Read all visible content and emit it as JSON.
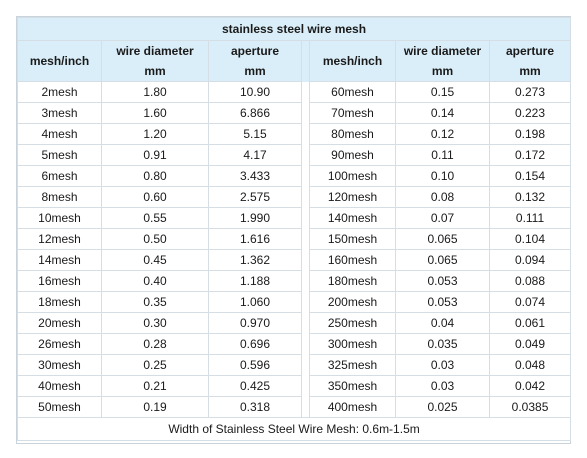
{
  "title": "stainless steel wire mesh",
  "headers": {
    "mesh": "mesh/inch",
    "wire_diameter": "wire diameter",
    "aperture": "aperture",
    "unit": "mm"
  },
  "left_rows": [
    {
      "mesh": "2mesh",
      "wire": "1.80",
      "aperture": "10.90"
    },
    {
      "mesh": "3mesh",
      "wire": "1.60",
      "aperture": "6.866"
    },
    {
      "mesh": "4mesh",
      "wire": "1.20",
      "aperture": "5.15"
    },
    {
      "mesh": "5mesh",
      "wire": "0.91",
      "aperture": "4.17"
    },
    {
      "mesh": "6mesh",
      "wire": "0.80",
      "aperture": "3.433"
    },
    {
      "mesh": "8mesh",
      "wire": "0.60",
      "aperture": "2.575"
    },
    {
      "mesh": "10mesh",
      "wire": "0.55",
      "aperture": "1.990"
    },
    {
      "mesh": "12mesh",
      "wire": "0.50",
      "aperture": "1.616"
    },
    {
      "mesh": "14mesh",
      "wire": "0.45",
      "aperture": "1.362"
    },
    {
      "mesh": "16mesh",
      "wire": "0.40",
      "aperture": "1.188"
    },
    {
      "mesh": "18mesh",
      "wire": "0.35",
      "aperture": "1.060"
    },
    {
      "mesh": "20mesh",
      "wire": "0.30",
      "aperture": "0.970"
    },
    {
      "mesh": "26mesh",
      "wire": "0.28",
      "aperture": "0.696"
    },
    {
      "mesh": "30mesh",
      "wire": "0.25",
      "aperture": "0.596"
    },
    {
      "mesh": "40mesh",
      "wire": "0.21",
      "aperture": "0.425"
    },
    {
      "mesh": "50mesh",
      "wire": "0.19",
      "aperture": "0.318"
    }
  ],
  "right_rows": [
    {
      "mesh": "60mesh",
      "wire": "0.15",
      "aperture": "0.273"
    },
    {
      "mesh": "70mesh",
      "wire": "0.14",
      "aperture": "0.223"
    },
    {
      "mesh": "80mesh",
      "wire": "0.12",
      "aperture": "0.198"
    },
    {
      "mesh": "90mesh",
      "wire": "0.11",
      "aperture": "0.172"
    },
    {
      "mesh": "100mesh",
      "wire": "0.10",
      "aperture": "0.154"
    },
    {
      "mesh": "120mesh",
      "wire": "0.08",
      "aperture": "0.132"
    },
    {
      "mesh": "140mesh",
      "wire": "0.07",
      "aperture": "0.111"
    },
    {
      "mesh": "150mesh",
      "wire": "0.065",
      "aperture": "0.104"
    },
    {
      "mesh": "160mesh",
      "wire": "0.065",
      "aperture": "0.094"
    },
    {
      "mesh": "180mesh",
      "wire": "0.053",
      "aperture": "0.088"
    },
    {
      "mesh": "200mesh",
      "wire": "0.053",
      "aperture": "0.074"
    },
    {
      "mesh": "250mesh",
      "wire": "0.04",
      "aperture": "0.061"
    },
    {
      "mesh": "300mesh",
      "wire": "0.035",
      "aperture": "0.049"
    },
    {
      "mesh": "325mesh",
      "wire": "0.03",
      "aperture": "0.048"
    },
    {
      "mesh": "350mesh",
      "wire": "0.03",
      "aperture": "0.042"
    },
    {
      "mesh": "400mesh",
      "wire": "0.025",
      "aperture": "0.0385"
    }
  ],
  "footer": "Width of Stainless Steel Wire Mesh: 0.6m-1.5m",
  "colors": {
    "header_bg": "#daeef9",
    "border": "#d5dde5"
  }
}
